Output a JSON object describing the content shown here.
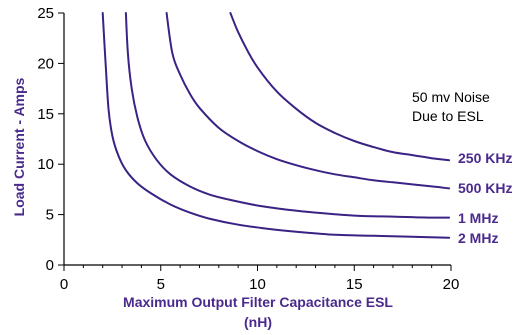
{
  "colors": {
    "series": "#3b2285",
    "axis": "#000000",
    "label": "#4a2a8c"
  },
  "chart_data": {
    "type": "line",
    "xlabel": "Maximum Output Filter Capacitance ESL",
    "xlabel_unit": "(nH)",
    "ylabel": "Load Current - Amps",
    "xlim": [
      0,
      20
    ],
    "ylim": [
      0,
      25
    ],
    "xticks": [
      "0",
      "5",
      "10",
      "15",
      "20"
    ],
    "yticks": [
      "0",
      "5",
      "10",
      "15",
      "20",
      "25"
    ],
    "grid": false,
    "annotation": [
      "50 mv Noise",
      "Due to ESL"
    ],
    "series": [
      {
        "name": "250 KHz",
        "x": [
          8.6,
          9.0,
          9.5,
          10.0,
          11.0,
          12.0,
          13.0,
          14.0,
          15.0,
          16.0,
          17.0,
          18.0,
          19.0,
          19.9
        ],
        "y": [
          25.0,
          23.1,
          21.2,
          19.6,
          17.2,
          15.5,
          14.1,
          13.1,
          12.3,
          11.7,
          11.2,
          10.9,
          10.6,
          10.4
        ]
      },
      {
        "name": "500 KHz",
        "x": [
          5.3,
          5.6,
          6.0,
          6.5,
          7.0,
          8.0,
          9.0,
          10.0,
          11.0,
          12.0,
          13.0,
          14.0,
          15.0,
          16.0,
          17.0,
          18.0,
          19.0,
          19.9
        ],
        "y": [
          25.0,
          21.0,
          18.9,
          17.0,
          15.6,
          13.6,
          12.3,
          11.3,
          10.5,
          9.9,
          9.4,
          9.0,
          8.7,
          8.4,
          8.2,
          8.0,
          7.8,
          7.6
        ]
      },
      {
        "name": "1 MHz",
        "x": [
          3.2,
          3.3,
          3.5,
          3.8,
          4.2,
          4.8,
          5.5,
          6.5,
          7.5,
          8.5,
          10.0,
          11.5,
          13.0,
          15.0,
          17.0,
          19.0,
          19.9
        ],
        "y": [
          25.0,
          21.0,
          17.5,
          14.6,
          12.3,
          10.4,
          9.0,
          7.8,
          7.0,
          6.5,
          5.9,
          5.5,
          5.2,
          4.9,
          4.8,
          4.7,
          4.7
        ]
      },
      {
        "name": "2 MHz",
        "x": [
          2.0,
          2.15,
          2.3,
          2.5,
          2.8,
          3.2,
          3.8,
          4.5,
          5.5,
          6.5,
          7.5,
          9.0,
          10.5,
          12.0,
          14.0,
          16.0,
          18.0,
          19.9
        ],
        "y": [
          25.0,
          20.0,
          15.5,
          12.8,
          10.9,
          9.4,
          8.1,
          7.1,
          6.0,
          5.2,
          4.6,
          4.0,
          3.6,
          3.3,
          3.0,
          2.9,
          2.8,
          2.7
        ]
      }
    ]
  }
}
